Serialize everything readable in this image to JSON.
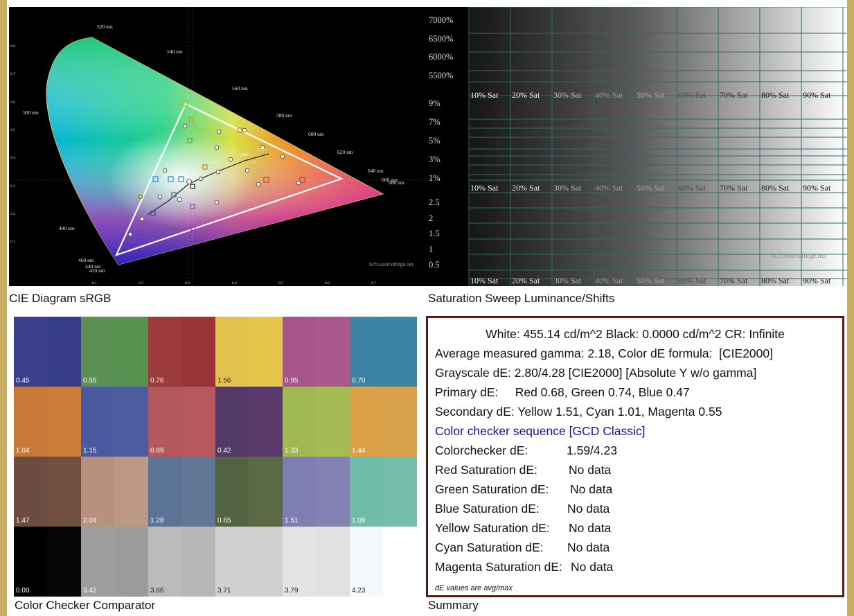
{
  "colors": {
    "frame": "#c8ae63",
    "summary_border": "#5b1a1a",
    "link_blue": "#1a0fb0"
  },
  "cie": {
    "caption": "CIE Diagram sRGB",
    "watermark": "hcfr.sourceforge.net",
    "wavelengths": [
      "520 nm",
      "540 nm",
      "560 nm",
      "580 nm",
      "600 nm",
      "620 nm",
      "640 nm",
      "660 nm",
      "680 nm",
      "500 nm",
      "480 nm",
      "460 nm",
      "440 nm",
      "420 nm"
    ],
    "cct_labels": [
      "3000",
      "2700",
      "4000",
      "5500",
      "9300",
      "A",
      "B",
      "C"
    ],
    "y_ticks": [
      "0.8",
      "0.7",
      "0.6",
      "0.5",
      "0.4",
      "0.3",
      "0.2",
      "0.1"
    ],
    "x_ticks": [
      "0.1",
      "0.2",
      "0.3",
      "0.4",
      "0.5",
      "0.6",
      "0.7"
    ]
  },
  "sweep": {
    "caption": "Saturation Sweep Luminance/Shifts",
    "watermark": "hcfr.sourceforge.net",
    "left_labels_top": [
      "7000%",
      "6500%",
      "6000%",
      "5500%"
    ],
    "left_labels_mid": [
      "9%",
      "7%",
      "5%",
      "3%",
      "1%"
    ],
    "left_labels_bottom": [
      "2.5",
      "2",
      "1.5",
      "1",
      "0.5"
    ],
    "sat_labels": [
      "10% Sat",
      "20% Sat",
      "30% Sat",
      "40% Sat",
      "50% Sat",
      "60% Sat",
      "70% Sat",
      "80% Sat",
      "90% Sat"
    ]
  },
  "checker": {
    "caption": "Color Checker Comparator",
    "rows": [
      [
        {
          "l": "#3b3f8e",
          "r": "#363c88",
          "v": "0.45"
        },
        {
          "l": "#5b8f55",
          "r": "#58904f",
          "v": "0.55"
        },
        {
          "l": "#9d3a3c",
          "r": "#9a3436",
          "v": "0.76"
        },
        {
          "l": "#e1c24c",
          "r": "#e5c54a",
          "v": "1.56"
        },
        {
          "l": "#a6548c",
          "r": "#ab598c",
          "v": "0.95"
        },
        {
          "l": "#3c82a2",
          "r": "#3a85a4",
          "v": "0.70"
        }
      ],
      [
        {
          "l": "#c87838",
          "r": "#cc7c3a",
          "v": "1.04"
        },
        {
          "l": "#4a5aa0",
          "r": "#4d5c9e",
          "v": "1.15"
        },
        {
          "l": "#b3585f",
          "r": "#b55860",
          "v": "0.89"
        },
        {
          "l": "#533a66",
          "r": "#59396a",
          "v": "0.42"
        },
        {
          "l": "#9fb851",
          "r": "#a5bb54",
          "v": "1.33"
        },
        {
          "l": "#dca148",
          "r": "#d9a24a",
          "v": "1.44"
        }
      ],
      [
        {
          "l": "#6c4c40",
          "r": "#71503f",
          "v": "1.47"
        },
        {
          "l": "#b7917e",
          "r": "#bd9985",
          "v": "2.04"
        },
        {
          "l": "#5b7396",
          "r": "#617795",
          "v": "1.28"
        },
        {
          "l": "#526441",
          "r": "#5c6a44",
          "v": "0.65"
        },
        {
          "l": "#7e7eb2",
          "r": "#8582b3",
          "v": "1.51"
        },
        {
          "l": "#71bca8",
          "r": "#74bea9",
          "v": "1.09"
        }
      ],
      [
        {
          "l": "#000000",
          "r": "#050505",
          "v": "0.00"
        },
        {
          "l": "#9e9e9e",
          "r": "#9b9b9b",
          "v": "3.42"
        },
        {
          "l": "#bbbbbb",
          "r": "#b7b7b7",
          "v": "3.66"
        },
        {
          "l": "#d0d0d0",
          "r": "#cfcfcf",
          "v": "3.71"
        },
        {
          "l": "#e3e3e3",
          "r": "#e1e1e1",
          "v": "3.79"
        },
        {
          "l": "#f6f9fb",
          "r": "#ffffff",
          "v": "4.23"
        }
      ]
    ]
  },
  "summary": {
    "caption": "Summary",
    "line1": "White: 455.14 cd/m^2 Black: 0.0000 cd/m^2 CR: Infinite",
    "line2": "Average measured gamma: 2.18, Color dE formula:  [CIE2000]",
    "line3": "Grayscale dE: 2.80/4.28 [CIE2000] [Absolute Y w/o gamma]",
    "line4": "Primary dE:     Red 0.68, Green 0.74, Blue 0.47",
    "line5": "Secondary dE: Yellow 1.51, Cyan 1.01, Magenta 0.55",
    "line6": "Color checker sequence [GCD Classic]",
    "rows": [
      {
        "label": "Colorchecker dE:",
        "value": "1.59/4.23"
      },
      {
        "label": "Red Saturation dE:",
        "value": "No data"
      },
      {
        "label": "Green Saturation dE:",
        "value": "No data"
      },
      {
        "label": "Blue Saturation dE:",
        "value": "No data"
      },
      {
        "label": "Yellow Saturation dE:",
        "value": "No data"
      },
      {
        "label": "Cyan Saturation dE:",
        "value": "No data"
      },
      {
        "label": "Magenta Saturation dE:",
        "value": "No data"
      }
    ],
    "note": "dE values are avg/max"
  }
}
